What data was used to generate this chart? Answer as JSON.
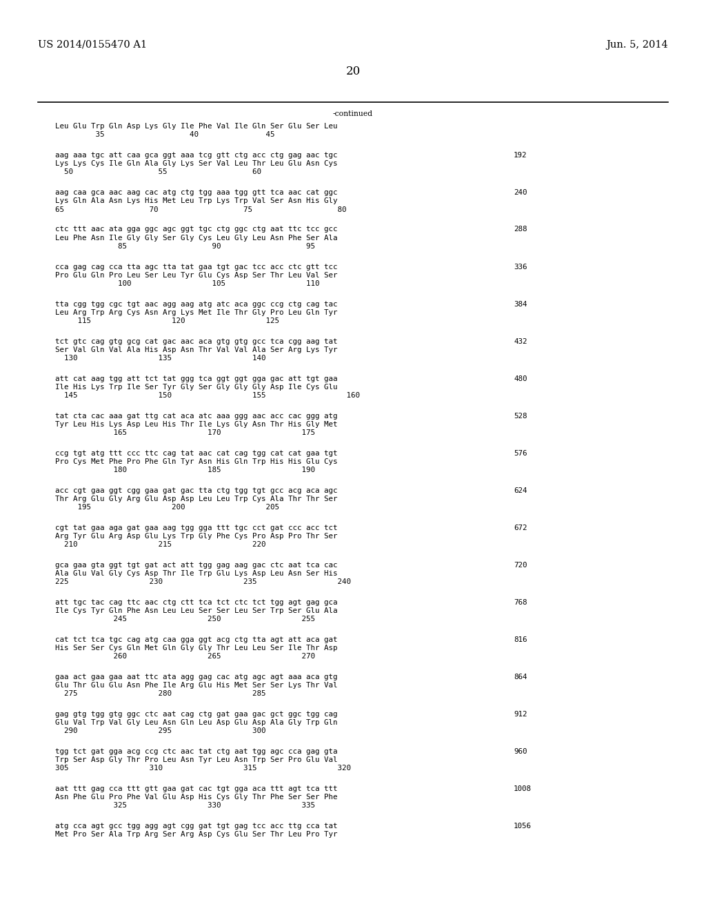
{
  "header_left": "US 2014/0155470 A1",
  "header_right": "Jun. 5, 2014",
  "page_number": "20",
  "continued_label": "-continued",
  "background_color": "#ffffff",
  "text_color": "#000000",
  "font_size_header": 10.5,
  "font_size_body": 7.8,
  "font_size_page": 12,
  "sequence_blocks": [
    {
      "dna": "Leu Glu Trp Gln Asp Lys Gly Ile Phe Val Ile Gln Ser Glu Ser Leu",
      "aa": null,
      "positions": "         35                   40               45",
      "number": null
    },
    {
      "dna": "aag aaa tgc att caa gca ggt aaa tcg gtt ctg acc ctg gag aac tgc",
      "aa": "Lys Lys Cys Ile Gln Ala Gly Lys Ser Val Leu Thr Leu Glu Asn Cys",
      "positions": "  50                   55                   60",
      "number": 192
    },
    {
      "dna": "aag caa gca aac aag cac atg ctg tgg aaa tgg gtt tca aac cat ggc",
      "aa": "Lys Gln Ala Asn Lys His Met Leu Trp Lys Trp Val Ser Asn His Gly",
      "positions": "65                   70                   75                   80",
      "number": 240
    },
    {
      "dna": "ctc ttt aac ata gga ggc agc ggt tgc ctg ggc ctg aat ttc tcc gcc",
      "aa": "Leu Phe Asn Ile Gly Gly Ser Gly Cys Leu Gly Leu Asn Phe Ser Ala",
      "positions": "              85                   90                   95",
      "number": 288
    },
    {
      "dna": "cca gag cag cca tta agc tta tat gaa tgt gac tcc acc ctc gtt tcc",
      "aa": "Pro Glu Gln Pro Leu Ser Leu Tyr Glu Cys Asp Ser Thr Leu Val Ser",
      "positions": "              100                  105                  110",
      "number": 336
    },
    {
      "dna": "tta cgg tgg cgc tgt aac agg aag atg atc aca ggc ccg ctg cag tac",
      "aa": "Leu Arg Trp Arg Cys Asn Arg Lys Met Ile Thr Gly Pro Leu Gln Tyr",
      "positions": "     115                  120                  125",
      "number": 384
    },
    {
      "dna": "tct gtc cag gtg gcg cat gac aac aca gtg gtg gcc tca cgg aag tat",
      "aa": "Ser Val Gln Val Ala His Asp Asn Thr Val Val Ala Ser Arg Lys Tyr",
      "positions": "  130                  135                  140",
      "number": 432
    },
    {
      "dna": "att cat aag tgg att tct tat ggg tca ggt ggt gga gac att tgt gaa",
      "aa": "Ile His Lys Trp Ile Ser Tyr Gly Ser Gly Gly Gly Asp Ile Cys Glu",
      "positions": "  145                  150                  155                  160",
      "number": 480
    },
    {
      "dna": "tat cta cac aaa gat ttg cat aca atc aaa ggg aac acc cac ggg atg",
      "aa": "Tyr Leu His Lys Asp Leu His Thr Ile Lys Gly Asn Thr His Gly Met",
      "positions": "             165                  170                  175",
      "number": 528
    },
    {
      "dna": "ccg tgt atg ttt ccc ttc cag tat aac cat cag tgg cat cat gaa tgt",
      "aa": "Pro Cys Met Phe Pro Phe Gln Tyr Asn His Gln Trp His His Glu Cys",
      "positions": "             180                  185                  190",
      "number": 576
    },
    {
      "dna": "acc cgt gaa ggt cgg gaa gat gac tta ctg tgg tgt gcc acg aca agc",
      "aa": "Thr Arg Glu Gly Arg Glu Asp Asp Leu Leu Trp Cys Ala Thr Thr Ser",
      "positions": "     195                  200                  205",
      "number": 624
    },
    {
      "dna": "cgt tat gaa aga gat gaa aag tgg gga ttt tgc cct gat ccc acc tct",
      "aa": "Arg Tyr Glu Arg Asp Glu Lys Trp Gly Phe Cys Pro Asp Pro Thr Ser",
      "positions": "  210                  215                  220",
      "number": 672
    },
    {
      "dna": "gca gaa gta ggt tgt gat act att tgg gag aag gac ctc aat tca cac",
      "aa": "Ala Glu Val Gly Cys Asp Thr Ile Trp Glu Lys Asp Leu Asn Ser His",
      "positions": "225                  230                  235                  240",
      "number": 720
    },
    {
      "dna": "att tgc tac cag ttc aac ctg ctt tca tct ctc tct tgg agt gag gca",
      "aa": "Ile Cys Tyr Gln Phe Asn Leu Leu Ser Ser Leu Ser Trp Ser Glu Ala",
      "positions": "             245                  250                  255",
      "number": 768
    },
    {
      "dna": "cat tct tca tgc cag atg caa gga ggt acg ctg tta agt att aca gat",
      "aa": "His Ser Ser Cys Gln Met Gln Gly Gly Thr Leu Leu Ser Ile Thr Asp",
      "positions": "             260                  265                  270",
      "number": 816
    },
    {
      "dna": "gaa act gaa gaa aat ttc ata agg gag cac atg agc agt aaa aca gtg",
      "aa": "Glu Thr Glu Glu Asn Phe Ile Arg Glu His Met Ser Ser Lys Thr Val",
      "positions": "  275                  280                  285",
      "number": 864
    },
    {
      "dna": "gag gtg tgg gtg ggc ctc aat cag ctg gat gaa gac gct ggc tgg cag",
      "aa": "Glu Val Trp Val Gly Leu Asn Gln Leu Asp Glu Asp Ala Gly Trp Gln",
      "positions": "  290                  295                  300",
      "number": 912
    },
    {
      "dna": "tgg tct gat gga acg ccg ctc aac tat ctg aat tgg agc cca gag gta",
      "aa": "Trp Ser Asp Gly Thr Pro Leu Asn Tyr Leu Asn Trp Ser Pro Glu Val",
      "positions": "305                  310                  315                  320",
      "number": 960
    },
    {
      "dna": "aat ttt gag cca ttt gtt gaa gat cac tgt gga aca ttt agt tca ttt",
      "aa": "Asn Phe Glu Pro Phe Val Glu Asp His Cys Gly Thr Phe Ser Ser Phe",
      "positions": "             325                  330                  335",
      "number": 1008
    },
    {
      "dna": "atg cca agt gcc tgg agg agt cgg gat tgt gag tcc acc ttg cca tat",
      "aa": "Met Pro Ser Ala Trp Arg Ser Arg Asp Cys Glu Ser Thr Leu Pro Tyr",
      "positions": null,
      "number": 1056
    }
  ]
}
